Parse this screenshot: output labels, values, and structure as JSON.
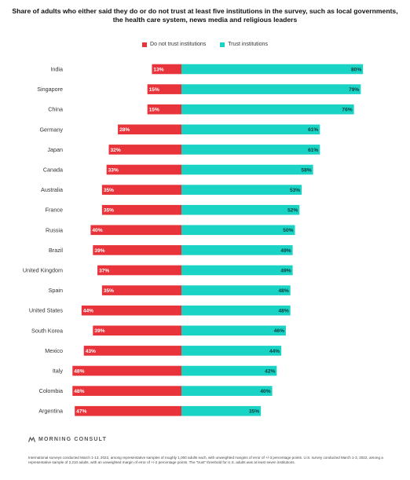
{
  "title": "Share of adults who either said they do or do not trust at least five institutions in the survey, such as local governments, the health care system, news media and religious leaders",
  "legend": {
    "distrust_label": "Do not trust institutions",
    "trust_label": "Trust institutions"
  },
  "colors": {
    "distrust": "#e8333a",
    "trust": "#19d3c5"
  },
  "brand": "MORNING CONSULT",
  "footnote": "International surveys conducted March 1-13, 2022, among representative samples of roughly 1,000 adults each, with unweighted margins of error of +/-3 percentage points. U.S. survey conducted March 1-3, 2022, among a representative sample of 2,210 adults, with an unweighted margin of error of +/-2 percentage points. The \"trust\" threshold for U.S. adults was at least seven institutions.",
  "chart_data": {
    "type": "bar",
    "orientation": "horizontal-diverging",
    "categories": [
      "India",
      "Singapore",
      "China",
      "Germany",
      "Japan",
      "Canada",
      "Australia",
      "France",
      "Russia",
      "Brazil",
      "United Kingdom",
      "Spain",
      "United States",
      "South Korea",
      "Mexico",
      "Italy",
      "Colombia",
      "Argentina"
    ],
    "series": [
      {
        "name": "Do not trust institutions",
        "values": [
          13,
          15,
          15,
          28,
          32,
          33,
          35,
          35,
          40,
          39,
          37,
          35,
          44,
          39,
          43,
          48,
          48,
          47
        ]
      },
      {
        "name": "Trust institutions",
        "values": [
          80,
          79,
          76,
          61,
          61,
          58,
          53,
          52,
          50,
          49,
          49,
          48,
          48,
          46,
          44,
          42,
          40,
          35
        ]
      }
    ],
    "value_suffix": "%",
    "grid": false,
    "legend_position": "top"
  }
}
